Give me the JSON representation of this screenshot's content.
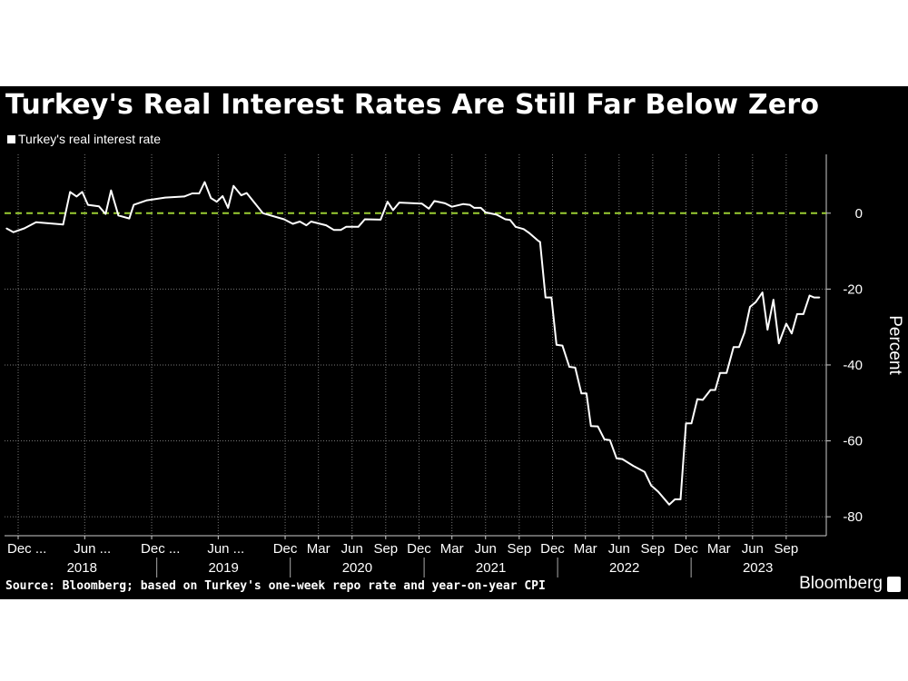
{
  "title": "Turkey's Real Interest Rates Are Still Far Below Zero",
  "source": "Source: Bloomberg; based on Turkey's one-week repo rate and year-on-year CPI",
  "logo": "Bloomberg",
  "chart_data": {
    "type": "line",
    "title": "Turkey's Real Interest Rates Are Still Far Below Zero",
    "ylabel": "Percent",
    "xlabel": "",
    "ylim": [
      -85,
      15.5
    ],
    "y_ticks": [
      0,
      -20,
      -40,
      -60,
      -80
    ],
    "y_axis_position": "right",
    "grid": true,
    "legend_placement": "top-left",
    "reference_line": {
      "value": 0,
      "style": "dashed",
      "color": "#9acd32"
    },
    "line_color": "#ffffff",
    "background": "#000000",
    "x_ticks": [
      {
        "date": "2017-12-01",
        "label": "Dec ..."
      },
      {
        "date": "2018-06-01",
        "label": "Jun ..."
      },
      {
        "date": "2018-12-01",
        "label": "Dec ..."
      },
      {
        "date": "2019-06-01",
        "label": "Jun ..."
      },
      {
        "date": "2019-12-01",
        "label": "Dec"
      },
      {
        "date": "2020-03-01",
        "label": "Mar"
      },
      {
        "date": "2020-06-01",
        "label": "Jun"
      },
      {
        "date": "2020-09-01",
        "label": "Sep"
      },
      {
        "date": "2020-12-01",
        "label": "Dec"
      },
      {
        "date": "2021-03-01",
        "label": "Mar"
      },
      {
        "date": "2021-06-01",
        "label": "Jun"
      },
      {
        "date": "2021-09-01",
        "label": "Sep"
      },
      {
        "date": "2021-12-01",
        "label": "Dec"
      },
      {
        "date": "2022-03-01",
        "label": "Mar"
      },
      {
        "date": "2022-06-01",
        "label": "Jun"
      },
      {
        "date": "2022-09-01",
        "label": "Sep"
      },
      {
        "date": "2022-12-01",
        "label": "Dec"
      },
      {
        "date": "2023-03-01",
        "label": "Mar"
      },
      {
        "date": "2023-06-01",
        "label": "Jun"
      },
      {
        "date": "2023-09-01",
        "label": "Sep"
      }
    ],
    "year_labels": [
      {
        "label": "2018",
        "from": "2017-11-01",
        "to": "2018-12-15"
      },
      {
        "label": "2019",
        "from": "2018-12-15",
        "to": "2019-12-15"
      },
      {
        "label": "2020",
        "from": "2019-12-15",
        "to": "2020-12-15"
      },
      {
        "label": "2021",
        "from": "2020-12-15",
        "to": "2021-12-15"
      },
      {
        "label": "2022",
        "from": "2021-12-15",
        "to": "2022-12-15"
      },
      {
        "label": "2023",
        "from": "2022-12-15",
        "to": "2023-12-15"
      }
    ],
    "series": [
      {
        "name": "Turkey's real interest rate",
        "points": [
          [
            "2017-10-30",
            -4.0
          ],
          [
            "2017-11-18",
            -5.0
          ],
          [
            "2017-12-18",
            -4.0
          ],
          [
            "2018-01-19",
            -2.4
          ],
          [
            "2018-04-03",
            -3.0
          ],
          [
            "2018-04-22",
            5.6
          ],
          [
            "2018-05-10",
            4.4
          ],
          [
            "2018-05-25",
            5.6
          ],
          [
            "2018-06-10",
            2.2
          ],
          [
            "2018-07-10",
            1.8
          ],
          [
            "2018-07-28",
            -0.2
          ],
          [
            "2018-08-12",
            6.0
          ],
          [
            "2018-09-01",
            -0.6
          ],
          [
            "2018-10-01",
            -1.4
          ],
          [
            "2018-10-13",
            2.2
          ],
          [
            "2018-11-18",
            3.4
          ],
          [
            "2019-01-07",
            4.1
          ],
          [
            "2019-02-28",
            4.4
          ],
          [
            "2019-03-22",
            5.2
          ],
          [
            "2019-04-10",
            5.2
          ],
          [
            "2019-04-25",
            8.2
          ],
          [
            "2019-05-12",
            4.0
          ],
          [
            "2019-05-28",
            3.0
          ],
          [
            "2019-06-13",
            4.5
          ],
          [
            "2019-06-28",
            1.4
          ],
          [
            "2019-07-13",
            7.2
          ],
          [
            "2019-08-03",
            4.7
          ],
          [
            "2019-08-18",
            5.3
          ],
          [
            "2019-10-01",
            0.0
          ],
          [
            "2019-11-28",
            -1.6
          ],
          [
            "2019-12-22",
            -2.8
          ],
          [
            "2020-01-10",
            -2.2
          ],
          [
            "2020-01-28",
            -3.2
          ],
          [
            "2020-02-10",
            -2.2
          ],
          [
            "2020-03-22",
            -3.2
          ],
          [
            "2020-04-12",
            -4.4
          ],
          [
            "2020-05-01",
            -4.4
          ],
          [
            "2020-05-16",
            -3.6
          ],
          [
            "2020-06-18",
            -3.6
          ],
          [
            "2020-07-06",
            -1.6
          ],
          [
            "2020-08-18",
            -1.7
          ],
          [
            "2020-09-06",
            3.0
          ],
          [
            "2020-09-21",
            0.8
          ],
          [
            "2020-10-08",
            2.8
          ],
          [
            "2020-12-09",
            2.5
          ],
          [
            "2020-12-28",
            1.2
          ],
          [
            "2021-01-12",
            3.2
          ],
          [
            "2021-02-10",
            2.6
          ],
          [
            "2021-03-01",
            1.7
          ],
          [
            "2021-04-01",
            2.4
          ],
          [
            "2021-04-19",
            2.2
          ],
          [
            "2021-05-01",
            1.4
          ],
          [
            "2021-05-19",
            1.4
          ],
          [
            "2021-06-01",
            0.2
          ],
          [
            "2021-07-01",
            -0.4
          ],
          [
            "2021-07-25",
            -1.6
          ],
          [
            "2021-08-07",
            -1.8
          ],
          [
            "2021-08-22",
            -3.6
          ],
          [
            "2021-09-13",
            -4.2
          ],
          [
            "2021-09-28",
            -5.2
          ],
          [
            "2021-10-22",
            -7.2
          ],
          [
            "2021-10-28",
            -7.6
          ],
          [
            "2021-11-12",
            -22.2
          ],
          [
            "2021-11-28",
            -22.2
          ],
          [
            "2021-12-12",
            -34.7
          ],
          [
            "2021-12-28",
            -34.9
          ],
          [
            "2022-01-16",
            -40.5
          ],
          [
            "2022-02-01",
            -40.7
          ],
          [
            "2022-02-18",
            -47.5
          ],
          [
            "2022-03-04",
            -47.5
          ],
          [
            "2022-03-16",
            -56.1
          ],
          [
            "2022-04-04",
            -56.2
          ],
          [
            "2022-04-22",
            -59.6
          ],
          [
            "2022-05-07",
            -59.8
          ],
          [
            "2022-05-25",
            -64.6
          ],
          [
            "2022-06-10",
            -64.8
          ],
          [
            "2022-07-10",
            -66.6
          ],
          [
            "2022-08-10",
            -68.2
          ],
          [
            "2022-08-28",
            -71.8
          ],
          [
            "2022-09-16",
            -73.4
          ],
          [
            "2022-10-16",
            -76.8
          ],
          [
            "2022-11-01",
            -75.4
          ],
          [
            "2022-11-16",
            -75.4
          ],
          [
            "2022-12-01",
            -55.4
          ],
          [
            "2022-12-16",
            -55.4
          ],
          [
            "2023-01-01",
            -49.0
          ],
          [
            "2023-01-16",
            -49.2
          ],
          [
            "2023-02-06",
            -46.6
          ],
          [
            "2023-02-19",
            -46.6
          ],
          [
            "2023-03-04",
            -42.1
          ],
          [
            "2023-03-22",
            -42.1
          ],
          [
            "2023-04-10",
            -35.3
          ],
          [
            "2023-04-25",
            -35.3
          ],
          [
            "2023-05-10",
            -31.5
          ],
          [
            "2023-05-25",
            -24.7
          ],
          [
            "2023-06-10",
            -23.4
          ],
          [
            "2023-06-28",
            -20.9
          ],
          [
            "2023-07-12",
            -30.7
          ],
          [
            "2023-07-28",
            -22.8
          ],
          [
            "2023-08-12",
            -34.3
          ],
          [
            "2023-09-01",
            -29.1
          ],
          [
            "2023-09-16",
            -31.7
          ],
          [
            "2023-10-01",
            -26.6
          ],
          [
            "2023-10-18",
            -26.6
          ],
          [
            "2023-11-04",
            -21.7
          ],
          [
            "2023-11-16",
            -22.2
          ],
          [
            "2023-12-01",
            -22.2
          ]
        ]
      }
    ]
  }
}
